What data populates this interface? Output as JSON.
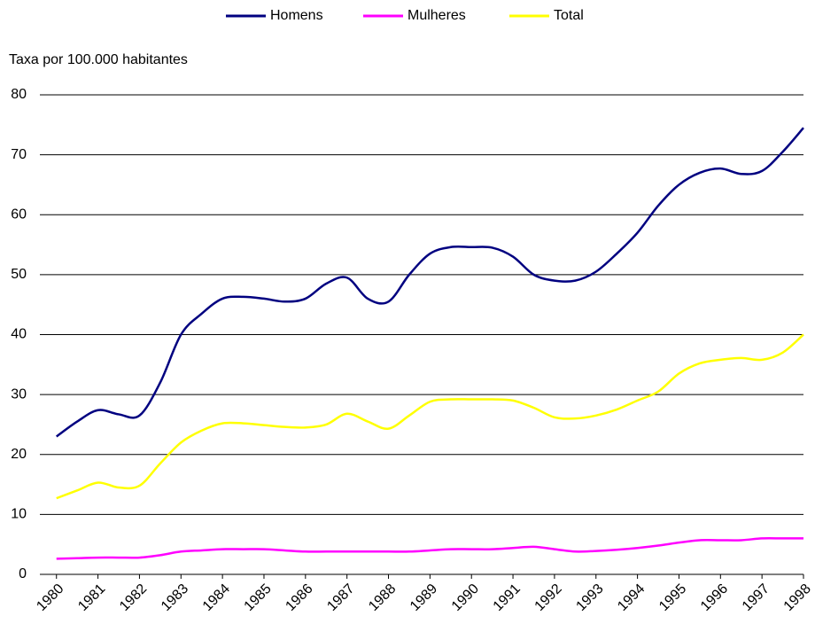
{
  "chart_data": {
    "type": "line",
    "y_label": "Taxa por 100.000 habitantes",
    "x": [
      1980,
      1980.5,
      1981,
      1981.5,
      1982,
      1982.5,
      1983,
      1983.5,
      1984,
      1984.5,
      1985,
      1985.5,
      1986,
      1986.5,
      1987,
      1987.5,
      1988,
      1988.5,
      1989,
      1989.5,
      1990,
      1990.5,
      1991,
      1991.5,
      1992,
      1992.5,
      1993,
      1993.5,
      1994,
      1994.5,
      1995,
      1995.5,
      1996,
      1996.5,
      1997,
      1997.5,
      1998
    ],
    "series": [
      {
        "name": "Homens",
        "color": "#000080",
        "values": [
          23,
          25.5,
          27.4,
          26.7,
          26.5,
          32,
          40,
          43.5,
          46,
          46.3,
          46,
          45.5,
          46,
          48.5,
          49.5,
          46,
          45.5,
          50,
          53.5,
          54.6,
          54.6,
          54.5,
          53,
          50,
          49,
          49,
          50.5,
          53.5,
          57,
          61.5,
          65,
          67,
          67.7,
          66.8,
          67.3,
          70.5,
          74.5
        ]
      },
      {
        "name": "Mulheres",
        "color": "#ff00ff",
        "values": [
          2.6,
          2.7,
          2.8,
          2.8,
          2.8,
          3.2,
          3.8,
          4.0,
          4.2,
          4.2,
          4.2,
          4.0,
          3.8,
          3.8,
          3.8,
          3.8,
          3.8,
          3.8,
          4.0,
          4.2,
          4.2,
          4.2,
          4.4,
          4.6,
          4.2,
          3.8,
          3.9,
          4.1,
          4.4,
          4.8,
          5.3,
          5.7,
          5.7,
          5.7,
          6.0,
          6.0,
          6.0
        ]
      },
      {
        "name": "Total",
        "color": "#ffff00",
        "values": [
          12.7,
          14,
          15.3,
          14.5,
          14.8,
          18.5,
          22,
          24,
          25.2,
          25.2,
          24.9,
          24.6,
          24.5,
          25,
          26.8,
          25.5,
          24.3,
          26.5,
          28.8,
          29.2,
          29.2,
          29.2,
          29,
          27.8,
          26.2,
          26,
          26.5,
          27.5,
          29,
          30.5,
          33.5,
          35.2,
          35.8,
          36.1,
          35.8,
          37,
          40
        ]
      }
    ],
    "xlim": [
      1979.6,
      1998
    ],
    "xticks": [
      1980,
      1981,
      1982,
      1983,
      1984,
      1985,
      1986,
      1987,
      1988,
      1989,
      1990,
      1991,
      1992,
      1993,
      1994,
      1995,
      1996,
      1997,
      1998
    ],
    "ylim": [
      0,
      80
    ],
    "yticks": [
      0,
      10,
      20,
      30,
      40,
      50,
      60,
      70,
      80
    ],
    "grid": true,
    "legend": "top"
  }
}
